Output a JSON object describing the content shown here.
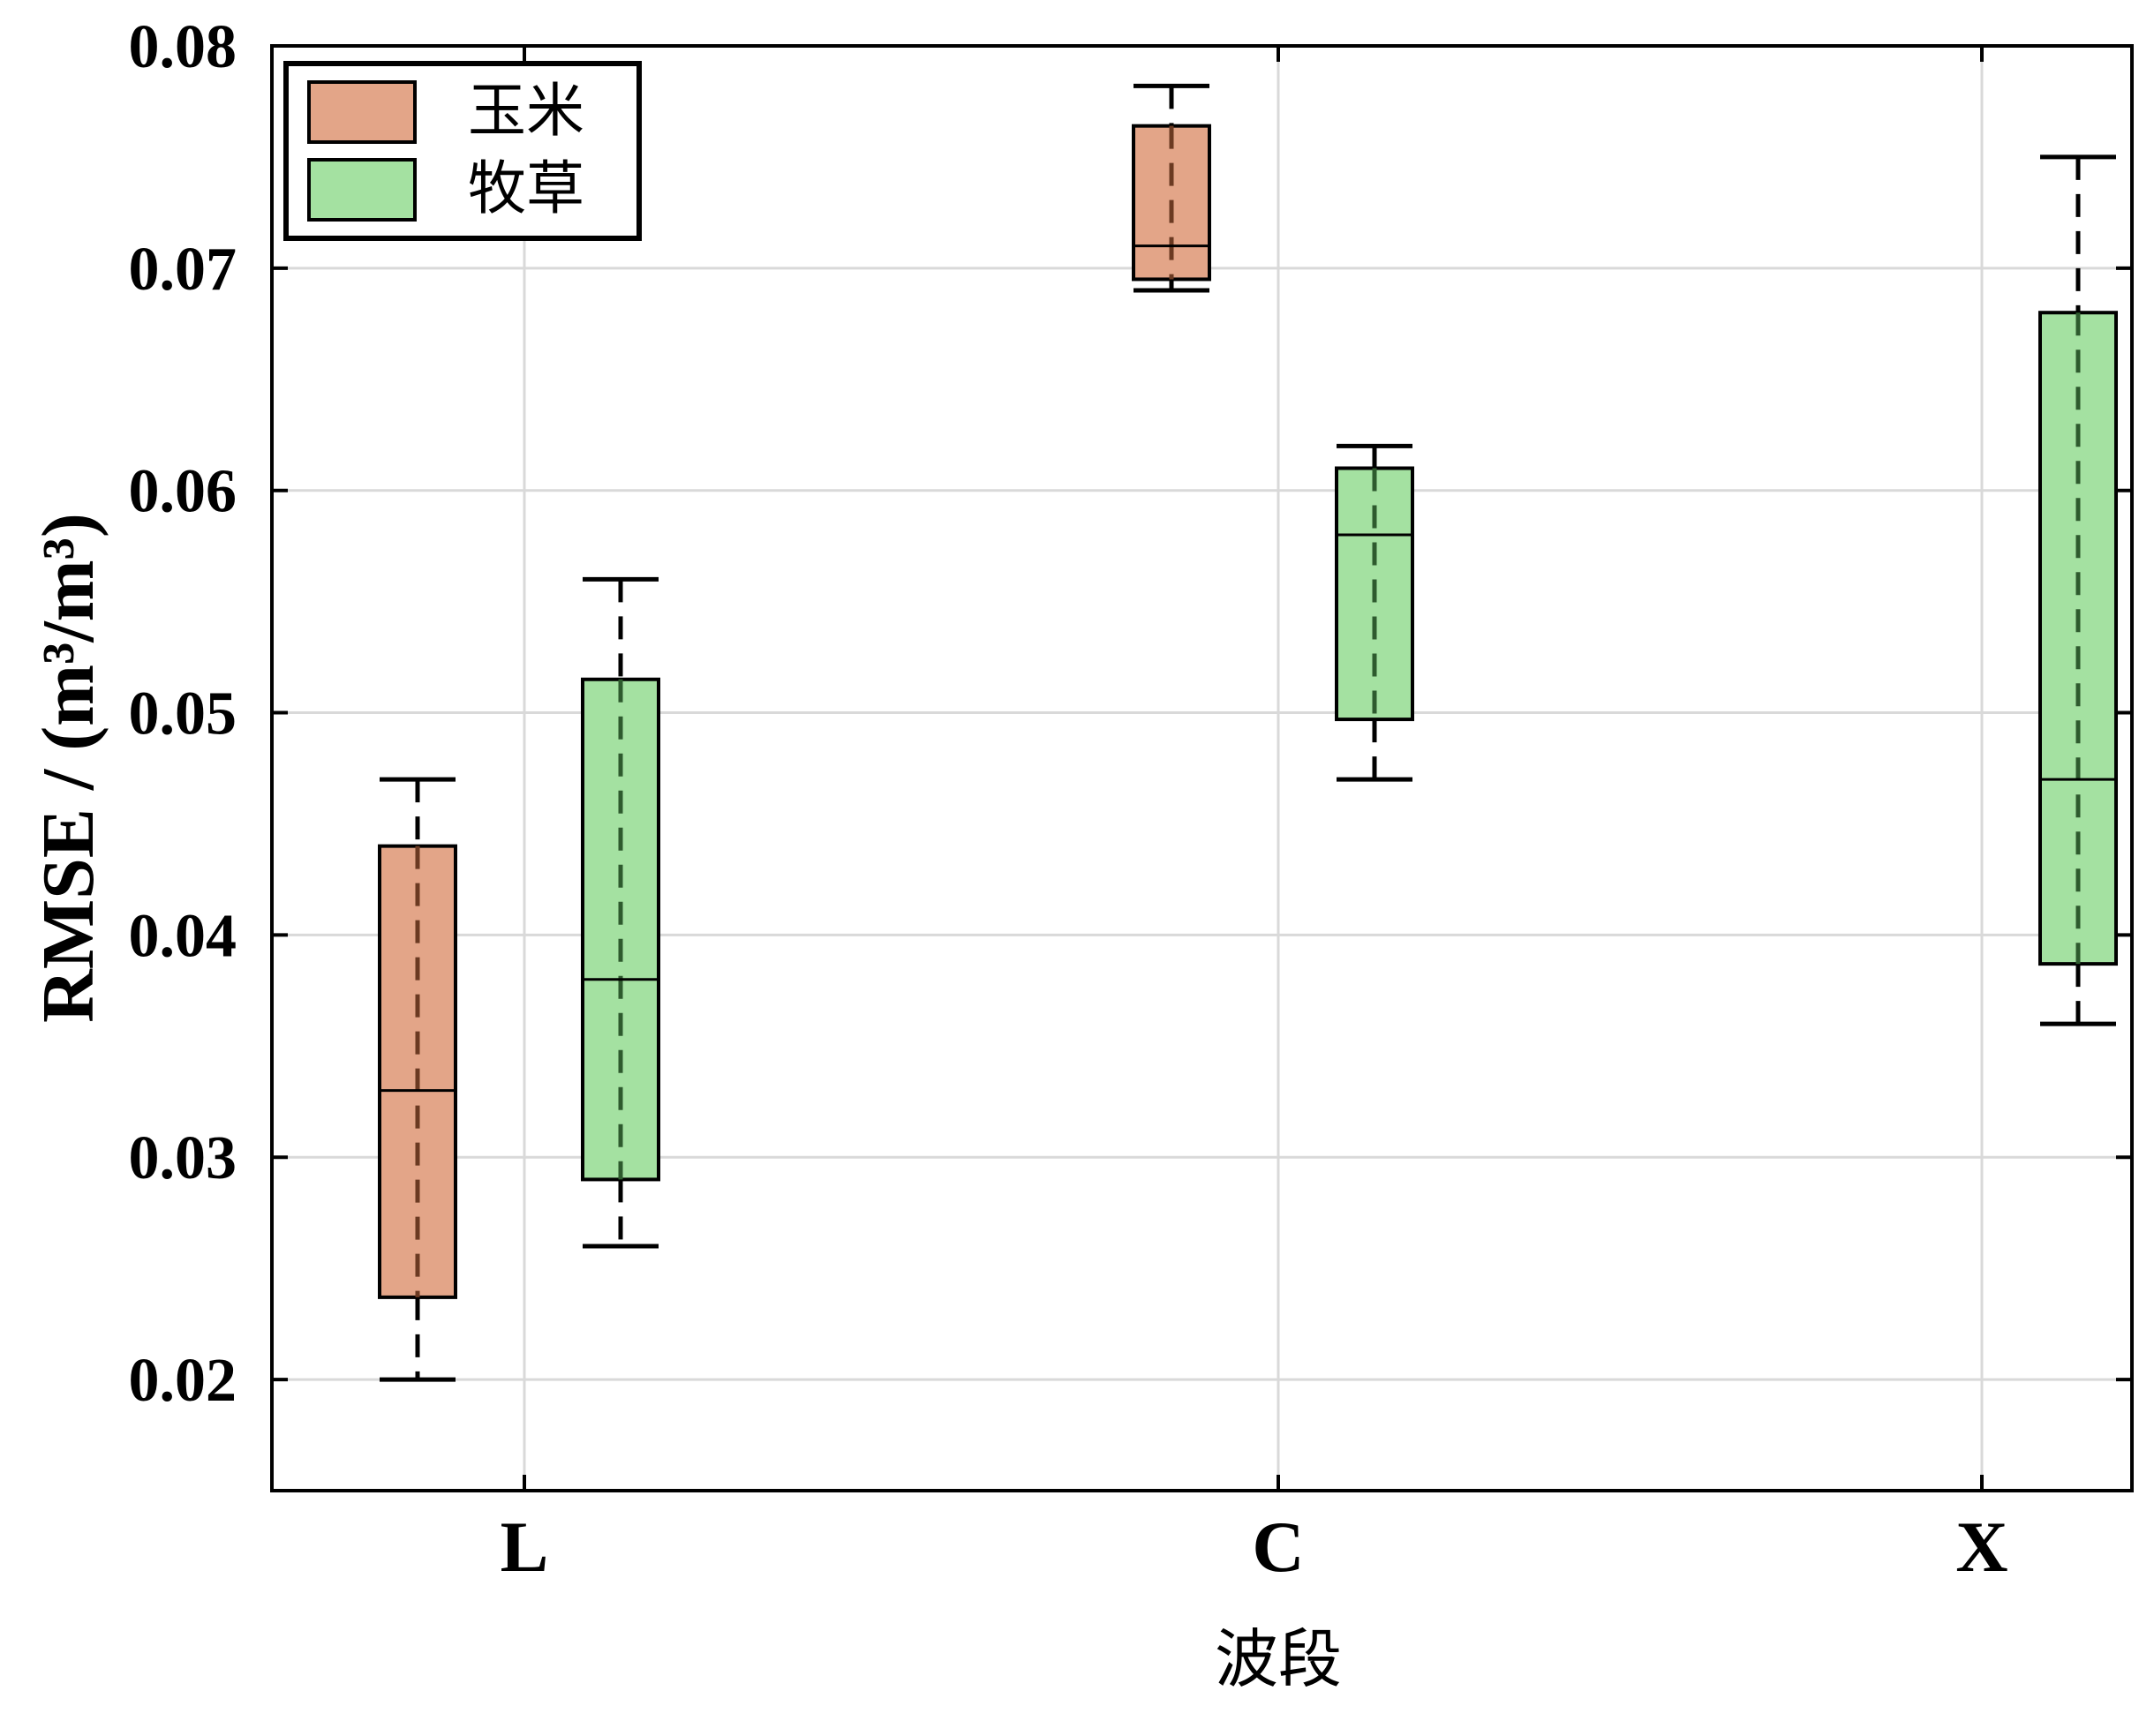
{
  "chart_data": {
    "type": "boxplot",
    "xlabel": "波段",
    "ylabel": "RMSE / (m³/m³)",
    "categories": [
      "L",
      "C",
      "X"
    ],
    "ylim": [
      0.015,
      0.08
    ],
    "yticks": [
      "0.02",
      "0.03",
      "0.04",
      "0.05",
      "0.06",
      "0.07",
      "0.08"
    ],
    "grid": true,
    "legend_position": "top-left",
    "series": [
      {
        "name": "玉米",
        "color": "#e3a588",
        "whisker_color": "#6b3a22",
        "boxes": [
          {
            "category": "L",
            "min": 0.02,
            "q1": 0.0237,
            "median": 0.033,
            "q3": 0.044,
            "max": 0.047
          },
          {
            "category": "C",
            "min": 0.069,
            "q1": 0.0695,
            "median": 0.071,
            "q3": 0.0764,
            "max": 0.0782
          }
        ]
      },
      {
        "name": "牧草",
        "color": "#a4e1a1",
        "whisker_color": "#2e5a2e",
        "boxes": [
          {
            "category": "L",
            "min": 0.026,
            "q1": 0.029,
            "median": 0.038,
            "q3": 0.0515,
            "max": 0.056
          },
          {
            "category": "C",
            "min": 0.047,
            "q1": 0.0497,
            "median": 0.058,
            "q3": 0.061,
            "max": 0.062
          },
          {
            "category": "X",
            "min": 0.036,
            "q1": 0.0387,
            "median": 0.047,
            "q3": 0.068,
            "max": 0.075
          }
        ]
      }
    ]
  }
}
